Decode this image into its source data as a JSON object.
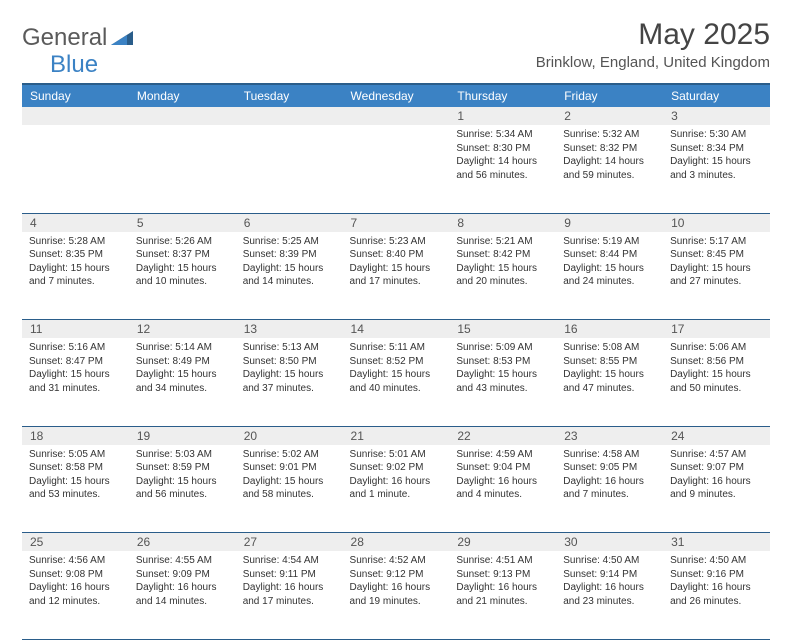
{
  "logo": {
    "general": "General",
    "blue": "Blue"
  },
  "title": "May 2025",
  "location": "Brinklow, England, United Kingdom",
  "colors": {
    "header_bg": "#3b82c4",
    "header_border": "#2a5d8a",
    "daynum_bg": "#eeeeee",
    "text": "#333333"
  },
  "weekdays": [
    "Sunday",
    "Monday",
    "Tuesday",
    "Wednesday",
    "Thursday",
    "Friday",
    "Saturday"
  ],
  "weeks": [
    [
      null,
      null,
      null,
      null,
      {
        "n": "1",
        "sr": "Sunrise: 5:34 AM",
        "ss": "Sunset: 8:30 PM",
        "dl": "Daylight: 14 hours and 56 minutes."
      },
      {
        "n": "2",
        "sr": "Sunrise: 5:32 AM",
        "ss": "Sunset: 8:32 PM",
        "dl": "Daylight: 14 hours and 59 minutes."
      },
      {
        "n": "3",
        "sr": "Sunrise: 5:30 AM",
        "ss": "Sunset: 8:34 PM",
        "dl": "Daylight: 15 hours and 3 minutes."
      }
    ],
    [
      {
        "n": "4",
        "sr": "Sunrise: 5:28 AM",
        "ss": "Sunset: 8:35 PM",
        "dl": "Daylight: 15 hours and 7 minutes."
      },
      {
        "n": "5",
        "sr": "Sunrise: 5:26 AM",
        "ss": "Sunset: 8:37 PM",
        "dl": "Daylight: 15 hours and 10 minutes."
      },
      {
        "n": "6",
        "sr": "Sunrise: 5:25 AM",
        "ss": "Sunset: 8:39 PM",
        "dl": "Daylight: 15 hours and 14 minutes."
      },
      {
        "n": "7",
        "sr": "Sunrise: 5:23 AM",
        "ss": "Sunset: 8:40 PM",
        "dl": "Daylight: 15 hours and 17 minutes."
      },
      {
        "n": "8",
        "sr": "Sunrise: 5:21 AM",
        "ss": "Sunset: 8:42 PM",
        "dl": "Daylight: 15 hours and 20 minutes."
      },
      {
        "n": "9",
        "sr": "Sunrise: 5:19 AM",
        "ss": "Sunset: 8:44 PM",
        "dl": "Daylight: 15 hours and 24 minutes."
      },
      {
        "n": "10",
        "sr": "Sunrise: 5:17 AM",
        "ss": "Sunset: 8:45 PM",
        "dl": "Daylight: 15 hours and 27 minutes."
      }
    ],
    [
      {
        "n": "11",
        "sr": "Sunrise: 5:16 AM",
        "ss": "Sunset: 8:47 PM",
        "dl": "Daylight: 15 hours and 31 minutes."
      },
      {
        "n": "12",
        "sr": "Sunrise: 5:14 AM",
        "ss": "Sunset: 8:49 PM",
        "dl": "Daylight: 15 hours and 34 minutes."
      },
      {
        "n": "13",
        "sr": "Sunrise: 5:13 AM",
        "ss": "Sunset: 8:50 PM",
        "dl": "Daylight: 15 hours and 37 minutes."
      },
      {
        "n": "14",
        "sr": "Sunrise: 5:11 AM",
        "ss": "Sunset: 8:52 PM",
        "dl": "Daylight: 15 hours and 40 minutes."
      },
      {
        "n": "15",
        "sr": "Sunrise: 5:09 AM",
        "ss": "Sunset: 8:53 PM",
        "dl": "Daylight: 15 hours and 43 minutes."
      },
      {
        "n": "16",
        "sr": "Sunrise: 5:08 AM",
        "ss": "Sunset: 8:55 PM",
        "dl": "Daylight: 15 hours and 47 minutes."
      },
      {
        "n": "17",
        "sr": "Sunrise: 5:06 AM",
        "ss": "Sunset: 8:56 PM",
        "dl": "Daylight: 15 hours and 50 minutes."
      }
    ],
    [
      {
        "n": "18",
        "sr": "Sunrise: 5:05 AM",
        "ss": "Sunset: 8:58 PM",
        "dl": "Daylight: 15 hours and 53 minutes."
      },
      {
        "n": "19",
        "sr": "Sunrise: 5:03 AM",
        "ss": "Sunset: 8:59 PM",
        "dl": "Daylight: 15 hours and 56 minutes."
      },
      {
        "n": "20",
        "sr": "Sunrise: 5:02 AM",
        "ss": "Sunset: 9:01 PM",
        "dl": "Daylight: 15 hours and 58 minutes."
      },
      {
        "n": "21",
        "sr": "Sunrise: 5:01 AM",
        "ss": "Sunset: 9:02 PM",
        "dl": "Daylight: 16 hours and 1 minute."
      },
      {
        "n": "22",
        "sr": "Sunrise: 4:59 AM",
        "ss": "Sunset: 9:04 PM",
        "dl": "Daylight: 16 hours and 4 minutes."
      },
      {
        "n": "23",
        "sr": "Sunrise: 4:58 AM",
        "ss": "Sunset: 9:05 PM",
        "dl": "Daylight: 16 hours and 7 minutes."
      },
      {
        "n": "24",
        "sr": "Sunrise: 4:57 AM",
        "ss": "Sunset: 9:07 PM",
        "dl": "Daylight: 16 hours and 9 minutes."
      }
    ],
    [
      {
        "n": "25",
        "sr": "Sunrise: 4:56 AM",
        "ss": "Sunset: 9:08 PM",
        "dl": "Daylight: 16 hours and 12 minutes."
      },
      {
        "n": "26",
        "sr": "Sunrise: 4:55 AM",
        "ss": "Sunset: 9:09 PM",
        "dl": "Daylight: 16 hours and 14 minutes."
      },
      {
        "n": "27",
        "sr": "Sunrise: 4:54 AM",
        "ss": "Sunset: 9:11 PM",
        "dl": "Daylight: 16 hours and 17 minutes."
      },
      {
        "n": "28",
        "sr": "Sunrise: 4:52 AM",
        "ss": "Sunset: 9:12 PM",
        "dl": "Daylight: 16 hours and 19 minutes."
      },
      {
        "n": "29",
        "sr": "Sunrise: 4:51 AM",
        "ss": "Sunset: 9:13 PM",
        "dl": "Daylight: 16 hours and 21 minutes."
      },
      {
        "n": "30",
        "sr": "Sunrise: 4:50 AM",
        "ss": "Sunset: 9:14 PM",
        "dl": "Daylight: 16 hours and 23 minutes."
      },
      {
        "n": "31",
        "sr": "Sunrise: 4:50 AM",
        "ss": "Sunset: 9:16 PM",
        "dl": "Daylight: 16 hours and 26 minutes."
      }
    ]
  ]
}
